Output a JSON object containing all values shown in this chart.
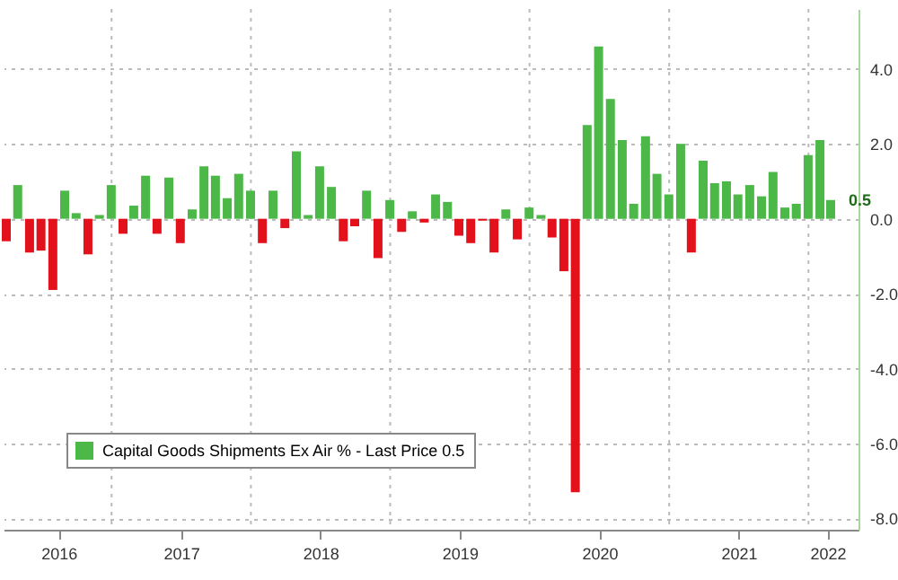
{
  "chart_data": {
    "type": "bar",
    "x": [
      "2016-03-31",
      "2016-04-30",
      "2016-05-31",
      "2016-06-30",
      "2016-07-31",
      "2016-08-31",
      "2016-09-30",
      "2016-10-31",
      "2016-11-30",
      "2016-12-31",
      "2017-01-31",
      "2017-02-28",
      "2017-03-31",
      "2017-04-30",
      "2017-05-31",
      "2017-06-30",
      "2017-07-31",
      "2017-08-31",
      "2017-09-30",
      "2017-10-31",
      "2017-11-30",
      "2017-12-31",
      "2018-01-31",
      "2018-02-28",
      "2018-03-31",
      "2018-04-30",
      "2018-05-31",
      "2018-06-30",
      "2018-07-31",
      "2018-08-31",
      "2018-09-30",
      "2018-10-31",
      "2018-11-30",
      "2018-12-31",
      "2019-01-31",
      "2019-02-28",
      "2019-03-31",
      "2019-04-30",
      "2019-05-31",
      "2019-06-30",
      "2019-07-31",
      "2019-08-31",
      "2019-09-30",
      "2019-10-31",
      "2019-11-30",
      "2019-12-31",
      "2020-01-31",
      "2020-02-29",
      "2020-03-31",
      "2020-04-30",
      "2020-05-31",
      "2020-06-30",
      "2020-07-31",
      "2020-08-31",
      "2020-09-30",
      "2020-10-31",
      "2020-11-30",
      "2020-12-31",
      "2021-01-31",
      "2021-02-28",
      "2021-03-31",
      "2021-04-30",
      "2021-05-31",
      "2021-06-30",
      "2021-07-31",
      "2021-08-31",
      "2021-09-30",
      "2021-10-31",
      "2021-11-30",
      "2021-12-31",
      "2022-01-31",
      "2022-02-28"
    ],
    "series": [
      {
        "name": "Capital Goods Shipments Ex Air % - Last Price 0.5",
        "color": "#4cb848",
        "values": [
          null,
          0.9,
          null,
          null,
          null,
          0.75,
          0.15,
          null,
          0.1,
          0.9,
          null,
          0.35,
          1.15,
          null,
          1.1,
          null,
          0.25,
          1.4,
          1.15,
          0.55,
          1.2,
          0.75,
          null,
          0.75,
          null,
          1.8,
          0.1,
          1.4,
          0.85,
          null,
          null,
          0.75,
          null,
          0.5,
          null,
          0.2,
          null,
          0.65,
          0.45,
          null,
          null,
          null,
          null,
          0.25,
          null,
          0.3,
          0.1,
          null,
          null,
          null,
          2.5,
          4.6,
          3.2,
          2.1,
          0.4,
          2.2,
          1.2,
          0.65,
          2.0,
          null,
          1.55,
          0.95,
          1.0,
          0.65,
          0.9,
          0.6,
          1.25,
          0.3,
          0.4,
          1.7,
          2.1,
          0.5
        ]
      },
      {
        "color": "#e3111b",
        "values": [
          -0.6,
          null,
          -0.9,
          -0.85,
          -1.9,
          null,
          null,
          -0.95,
          null,
          null,
          -0.4,
          null,
          null,
          -0.4,
          null,
          -0.65,
          null,
          null,
          null,
          null,
          null,
          null,
          -0.65,
          null,
          -0.25,
          null,
          null,
          null,
          null,
          -0.6,
          -0.2,
          null,
          -1.05,
          null,
          -0.35,
          null,
          -0.1,
          null,
          null,
          -0.45,
          -0.65,
          -0.05,
          -0.9,
          null,
          -0.55,
          null,
          null,
          -0.5,
          -1.4,
          -7.3,
          null,
          null,
          null,
          null,
          null,
          null,
          null,
          null,
          null,
          -0.9,
          null,
          null,
          null,
          null,
          null,
          null,
          null,
          null,
          null,
          null,
          null,
          null
        ]
      }
    ],
    "xlim": [
      "2016-03-24",
      "2022-05-12"
    ],
    "xticks": [
      {
        "value": "2016-08-15",
        "label": "2016"
      },
      {
        "value": "2017-01-01",
        "label": null
      },
      {
        "value": "2017-07-02",
        "label": "2017"
      },
      {
        "value": "2018-01-01",
        "label": null
      },
      {
        "value": "2018-07-02",
        "label": "2018"
      },
      {
        "value": "2019-01-01",
        "label": null
      },
      {
        "value": "2019-07-02",
        "label": "2019"
      },
      {
        "value": "2020-01-01",
        "label": null
      },
      {
        "value": "2020-07-02",
        "label": "2020"
      },
      {
        "value": "2021-01-01",
        "label": null
      },
      {
        "value": "2021-07-02",
        "label": "2021"
      },
      {
        "value": "2022-01-01",
        "label": null
      },
      {
        "value": "2022-02-20",
        "label": "2022"
      }
    ],
    "ylim": [
      -8.3,
      5.6
    ],
    "yticks": [
      {
        "value": -8,
        "label": "-8.0"
      },
      {
        "value": -6,
        "label": "-6.0"
      },
      {
        "value": -4,
        "label": "-4.0"
      },
      {
        "value": -2,
        "label": "-2.0"
      },
      {
        "value": 0,
        "label": "0.0"
      },
      {
        "value": 2,
        "label": "2.0"
      },
      {
        "value": 4,
        "label": "4.0"
      }
    ],
    "annotations": [
      {
        "text": "0.5",
        "x": "2022-02-28",
        "y": 0.5
      }
    ],
    "grid": true,
    "legend": "bottom left"
  }
}
